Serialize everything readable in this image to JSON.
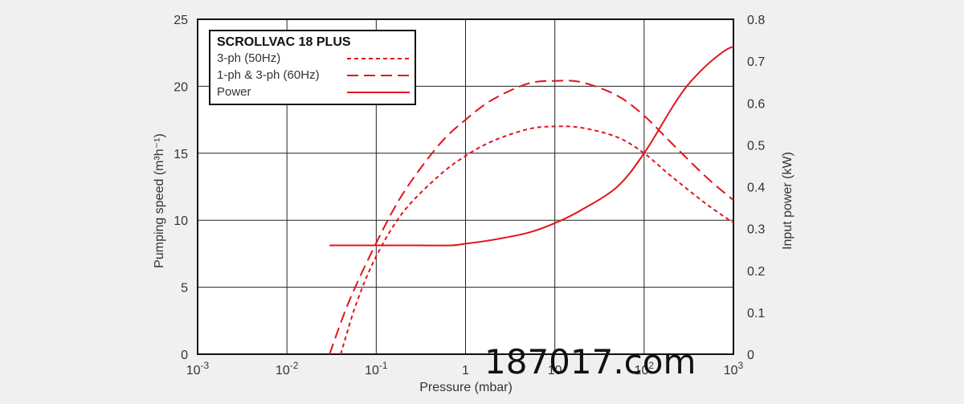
{
  "watermark": "187017.com",
  "chart_data": {
    "type": "line",
    "title": "SCROLLVAC 18 PLUS",
    "xlabel": "Pressure (mbar)",
    "ylabel_left": "Pumping speed (m³h⁻¹)",
    "ylabel_right": "Input power (kW)",
    "x_scale": "log",
    "xlim": [
      0.001,
      1000
    ],
    "ylim_left": [
      0,
      25
    ],
    "ylim_right": [
      0,
      0.8
    ],
    "x_ticks": [
      {
        "base": "10",
        "exp": "-3",
        "value": 0.001
      },
      {
        "base": "10",
        "exp": "-2",
        "value": 0.01
      },
      {
        "base": "10",
        "exp": "-1",
        "value": 0.1
      },
      {
        "base": "1",
        "exp": "",
        "value": 1
      },
      {
        "base": "10",
        "exp": "",
        "value": 10
      },
      {
        "base": "10",
        "exp": "2",
        "value": 100
      },
      {
        "base": "10",
        "exp": "3",
        "value": 1000
      }
    ],
    "y_ticks_left": [
      "0",
      "5",
      "10",
      "15",
      "20",
      "25"
    ],
    "y_ticks_right": [
      "0",
      "0.1",
      "0.2",
      "0.3",
      "0.4",
      "0.5",
      "0.6",
      "0.7",
      "0.8"
    ],
    "grid": true,
    "legend_position": "top-left",
    "color": "#e3131b",
    "series": [
      {
        "name": "3-ph (50Hz)",
        "axis": "left",
        "style": "dotted",
        "x": [
          0.04,
          0.06,
          0.1,
          0.2,
          0.5,
          1,
          2,
          5,
          10,
          20,
          50,
          100,
          200,
          500,
          1000
        ],
        "y": [
          0,
          3.8,
          7.3,
          10.6,
          13.3,
          14.8,
          15.9,
          16.8,
          17.0,
          16.9,
          16.2,
          15.0,
          13.3,
          11.2,
          9.8
        ]
      },
      {
        "name": "1-ph & 3-ph (60Hz)",
        "axis": "left",
        "style": "dashed",
        "x": [
          0.03,
          0.05,
          0.1,
          0.2,
          0.5,
          1,
          2,
          5,
          10,
          20,
          50,
          100,
          200,
          500,
          1000
        ],
        "y": [
          0,
          4.0,
          8.3,
          12.0,
          15.6,
          17.5,
          19.0,
          20.2,
          20.4,
          20.3,
          19.3,
          17.8,
          15.8,
          13.2,
          11.5
        ]
      },
      {
        "name": "Power",
        "axis": "right",
        "style": "solid",
        "x": [
          0.03,
          0.1,
          0.3,
          0.7,
          1,
          2,
          5,
          10,
          20,
          50,
          100,
          200,
          300,
          500,
          800,
          1000
        ],
        "y": [
          0.26,
          0.26,
          0.26,
          0.26,
          0.264,
          0.273,
          0.29,
          0.313,
          0.345,
          0.4,
          0.48,
          0.585,
          0.64,
          0.69,
          0.725,
          0.735
        ]
      }
    ]
  }
}
